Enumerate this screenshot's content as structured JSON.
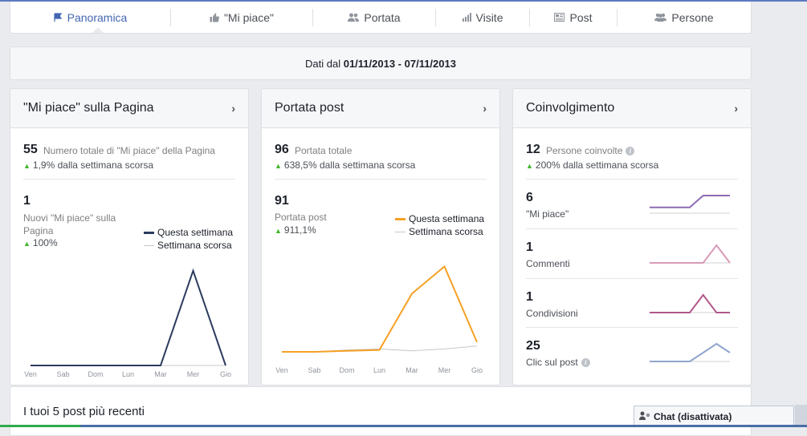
{
  "tabs": [
    {
      "label": "Panoramica",
      "icon": "flag-icon",
      "active": true
    },
    {
      "label": "\"Mi piace\"",
      "icon": "thumbs-up-icon"
    },
    {
      "label": "Portata",
      "icon": "people-icon"
    },
    {
      "label": "Visite",
      "icon": "bar-chart-icon"
    },
    {
      "label": "Post",
      "icon": "newspaper-icon"
    },
    {
      "label": "Persone",
      "icon": "group-icon"
    }
  ],
  "date_range": {
    "prefix": "Dati dal",
    "range": "01/11/2013 - 07/11/2013"
  },
  "likes_card": {
    "title": "\"Mi piace\" sulla Pagina",
    "total": "55",
    "total_label": "Numero totale di \"Mi piace\" della Pagina",
    "total_change": "1,9% dalla settimana scorsa",
    "new_value": "1",
    "new_label": "Nuovi \"Mi piace\" sulla Pagina",
    "new_change": "100%",
    "legend_this": "Questa settimana",
    "legend_last": "Settimana scorsa"
  },
  "reach_card": {
    "title": "Portata post",
    "total": "96",
    "total_label": "Portata totale",
    "total_change": "638,5% dalla settimana scorsa",
    "sub_value": "91",
    "sub_label": "Portata post",
    "sub_change": "911,1%",
    "legend_this": "Questa settimana",
    "legend_last": "Settimana scorsa"
  },
  "engagement_card": {
    "title": "Coinvolgimento",
    "total": "12",
    "total_label": "Persone coinvolte",
    "total_change": "200% dalla settimana scorsa",
    "rows": [
      {
        "value": "6",
        "label": "\"Mi piace\""
      },
      {
        "value": "1",
        "label": "Commenti"
      },
      {
        "value": "1",
        "label": "Condivisioni"
      },
      {
        "value": "25",
        "label": "Clic sul post"
      }
    ]
  },
  "recent_posts": {
    "title": "I tuoi 5 post più recenti"
  },
  "chat": {
    "label": "Chat (disattivata)"
  },
  "colors": {
    "accent": "#4267b2",
    "likes_this_week": "#2c3b5e",
    "reach_this_week": "#f5a024",
    "last_week": "#c8c8c8",
    "positive": "#42b72a",
    "spark_likes": "#8e6bb5",
    "spark_comments": "#d99bb7",
    "spark_shares": "#b0578a",
    "spark_clicks": "#8fa5cc"
  },
  "chart_data": [
    {
      "type": "line",
      "categories": [
        "Ven",
        "Sab",
        "Dom",
        "Lun",
        "Mar",
        "Mer",
        "Gio"
      ],
      "series": [
        {
          "name": "Questa settimana",
          "values": [
            0,
            0,
            0,
            0,
            0,
            1,
            0
          ]
        },
        {
          "name": "Settimana scorsa",
          "values": [
            0,
            0,
            0,
            0,
            0,
            0,
            0
          ]
        }
      ],
      "ylim": [
        0,
        1.1
      ]
    },
    {
      "type": "line",
      "categories": [
        "Ven",
        "Sab",
        "Dom",
        "Lun",
        "Mar",
        "Mer",
        "Gio"
      ],
      "series": [
        {
          "name": "Questa settimana",
          "values": [
            0,
            0,
            1,
            2,
            60,
            88,
            10
          ]
        },
        {
          "name": "Settimana scorsa",
          "values": [
            0,
            0,
            2,
            3,
            1,
            3,
            6
          ]
        }
      ],
      "ylim": [
        0,
        100
      ]
    },
    {
      "type": "line",
      "series": [
        {
          "name": "\"Mi piace\"",
          "values": [
            1,
            1,
            1,
            1,
            3,
            3,
            3
          ]
        },
        {
          "name": "Commenti",
          "values": [
            0,
            0,
            0,
            0,
            0,
            1,
            0
          ]
        },
        {
          "name": "Condivisioni",
          "values": [
            0,
            0,
            0,
            0,
            1,
            0,
            0
          ]
        },
        {
          "name": "Clic sul post",
          "values": [
            0,
            0,
            0,
            0,
            1,
            2,
            1
          ]
        }
      ]
    }
  ]
}
